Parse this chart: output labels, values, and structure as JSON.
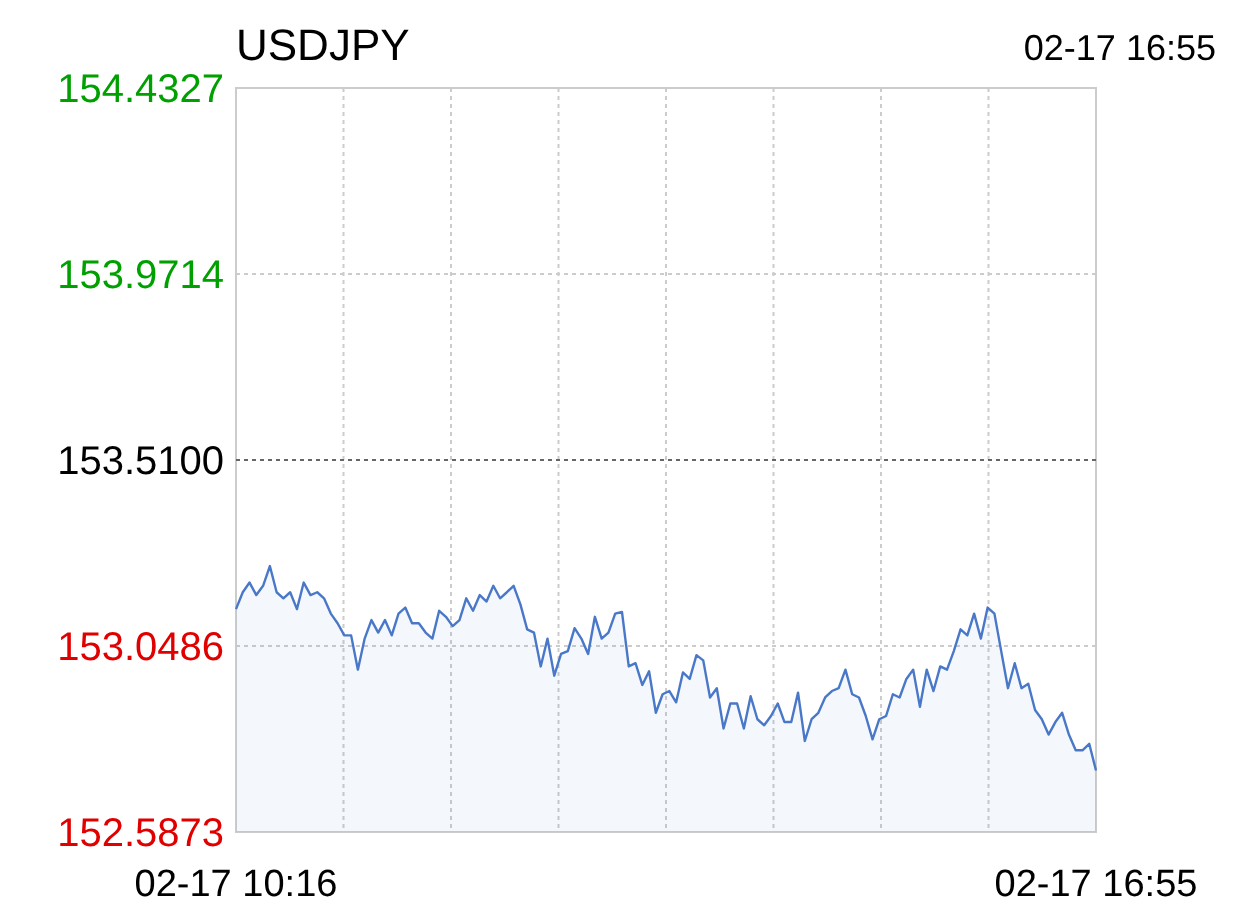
{
  "chart_data": {
    "type": "area",
    "title": "USDJPY",
    "subtitle": "02-17 16:55",
    "categories": [
      "02-17 10:16",
      null,
      null,
      null,
      null,
      null,
      null,
      null,
      null,
      null,
      null,
      null,
      null,
      null,
      null,
      null,
      null,
      null,
      null,
      null,
      null,
      null,
      null,
      null,
      null,
      null,
      null,
      null,
      null,
      null,
      null,
      null,
      null,
      null,
      null,
      null,
      null,
      null,
      null,
      null,
      null,
      null,
      null,
      null,
      null,
      null,
      null,
      null,
      null,
      null,
      null,
      null,
      null,
      null,
      null,
      null,
      null,
      null,
      null,
      null,
      null,
      null,
      null,
      null,
      null,
      null,
      null,
      null,
      null,
      null,
      null,
      null,
      null,
      null,
      null,
      null,
      null,
      null,
      null,
      null,
      null,
      null,
      null,
      null,
      null,
      null,
      null,
      null,
      null,
      null,
      null,
      null,
      null,
      null,
      null,
      null,
      null,
      null,
      null,
      null,
      null,
      null,
      null,
      null,
      null,
      null,
      null,
      null,
      null,
      null,
      null,
      null,
      null,
      null,
      null,
      null,
      null,
      null,
      null,
      null,
      null,
      null,
      null,
      null,
      null,
      null,
      null,
      "02-17 16:55"
    ],
    "series": [
      {
        "color": "#4a78c8",
        "values": [
          153.14,
          153.182,
          153.206,
          153.175,
          153.198,
          153.247,
          153.182,
          153.167,
          153.182,
          153.14,
          153.206,
          153.175,
          153.182,
          153.167,
          153.129,
          153.105,
          153.075,
          153.075,
          152.99,
          153.067,
          153.113,
          153.082,
          153.113,
          153.075,
          153.129,
          153.144,
          153.105,
          153.105,
          153.082,
          153.067,
          153.136,
          153.121,
          153.098,
          153.113,
          153.167,
          153.136,
          153.175,
          153.159,
          153.198,
          153.167,
          153.182,
          153.198,
          153.152,
          153.09,
          153.082,
          152.998,
          153.067,
          152.975,
          153.029,
          153.036,
          153.093,
          153.067,
          153.029,
          153.121,
          153.067,
          153.082,
          153.129,
          153.133,
          152.998,
          153.006,
          152.952,
          152.986,
          152.883,
          152.929,
          152.937,
          152.909,
          152.983,
          152.967,
          153.026,
          153.013,
          152.921,
          152.944,
          152.844,
          152.906,
          152.906,
          152.844,
          152.924,
          152.867,
          152.852,
          152.875,
          152.906,
          152.86,
          152.86,
          152.933,
          152.813,
          152.867,
          152.883,
          152.921,
          152.937,
          152.944,
          152.99,
          152.929,
          152.921,
          152.875,
          152.817,
          152.867,
          152.875,
          152.929,
          152.921,
          152.967,
          152.99,
          152.898,
          152.99,
          152.937,
          152.998,
          152.99,
          153.036,
          153.09,
          153.075,
          153.129,
          153.067,
          153.144,
          153.129,
          153.036,
          152.944,
          153.006,
          152.944,
          152.955,
          152.89,
          152.867,
          152.829,
          152.86,
          152.883,
          152.829,
          152.79,
          152.79,
          152.806,
          152.74
        ]
      }
    ],
    "ylim": [
      152.5873,
      154.4327
    ],
    "yticks": [
      {
        "value": 152.5873,
        "label": "152.5873"
      },
      {
        "value": 153.0486,
        "label": "153.0486"
      },
      {
        "value": 153.51,
        "label": "153.5100"
      },
      {
        "value": 153.9714,
        "label": "153.9714"
      },
      {
        "value": 154.4327,
        "label": "154.4327"
      }
    ],
    "ref_lines": [
      {
        "axis": "y",
        "value": 153.51,
        "color": "#666666",
        "line_style": "dotted"
      }
    ],
    "grid": true,
    "marker": "none",
    "line_style": "solid"
  }
}
